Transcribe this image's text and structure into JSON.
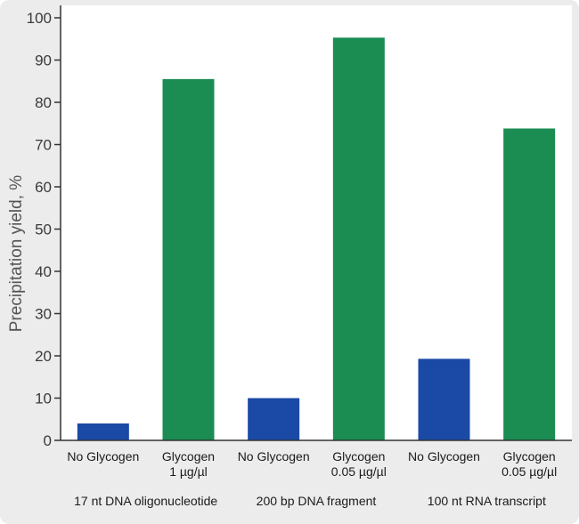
{
  "chart_data": {
    "type": "bar",
    "ylabel": "Precipitation yield, %",
    "ylim": [
      0,
      100
    ],
    "yticks": [
      0,
      10,
      20,
      30,
      40,
      50,
      60,
      70,
      80,
      90,
      100
    ],
    "grid": false,
    "groups": [
      {
        "label": "17 nt DNA oligonucleotide",
        "bars": [
          {
            "label_lines": [
              "No Glycogen"
            ],
            "value": 4,
            "color": "#1a4aa6"
          },
          {
            "label_lines": [
              "Glycogen",
              "1 µg/µl"
            ],
            "value": 85.5,
            "color": "#1b8c52"
          }
        ]
      },
      {
        "label": "200 bp DNA fragment",
        "bars": [
          {
            "label_lines": [
              "No Glycogen"
            ],
            "value": 10,
            "color": "#1a4aa6"
          },
          {
            "label_lines": [
              "Glycogen",
              "0.05 µg/µl"
            ],
            "value": 95.3,
            "color": "#1b8c52"
          }
        ]
      },
      {
        "label": "100 nt RNA transcript",
        "bars": [
          {
            "label_lines": [
              "No Glycogen"
            ],
            "value": 19.3,
            "color": "#1a4aa6"
          },
          {
            "label_lines": [
              "Glycogen",
              "0.05 µg/µl"
            ],
            "value": 73.8,
            "color": "#1b8c52"
          }
        ]
      }
    ]
  }
}
